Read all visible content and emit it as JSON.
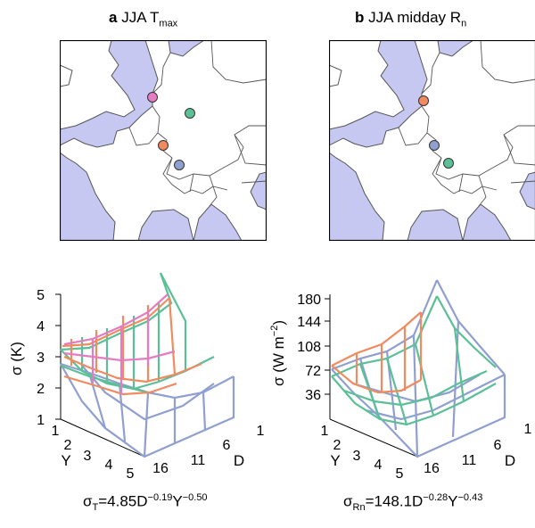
{
  "panels": [
    {
      "id": "a",
      "label": "a",
      "title": "JJA T",
      "title_sub": "max",
      "title_after": "",
      "dots": [
        {
          "name": "pink-site-marker",
          "color": "#e57cc2"
        },
        {
          "name": "green-site-marker",
          "color": "#5bbf97"
        },
        {
          "name": "orange-site-marker",
          "color": "#f08a60"
        },
        {
          "name": "blue-site-marker",
          "color": "#8f9fcf"
        }
      ],
      "zlabel": "σ (K)",
      "zticks": [
        "1",
        "2",
        "3",
        "4",
        "5"
      ],
      "yticks": [
        "1",
        "2",
        "3",
        "4",
        "5"
      ],
      "ylabel": "Y",
      "xticks": [
        "16",
        "11",
        "6",
        "1"
      ],
      "xlabel": "D",
      "formula": {
        "sigma": "σ",
        "sigma_sub": "T",
        "body": "=4.85D",
        "exp1": "−0.19",
        "mid": "Y",
        "exp2": "−0.50"
      }
    },
    {
      "id": "b",
      "label": "b",
      "title": "JJA midday R",
      "title_sub": "n",
      "title_after": "",
      "dots": [
        {
          "name": "orange-site-marker",
          "color": "#f08a60"
        },
        {
          "name": "blue-site-marker",
          "color": "#8f9fcf"
        },
        {
          "name": "green-site-marker",
          "color": "#5bbf97"
        }
      ],
      "zlabel": "σ (W m",
      "zlabel_sup": "−2",
      "zlabel_end": ")",
      "zticks": [
        "36",
        "72",
        "108",
        "144",
        "180"
      ],
      "yticks": [
        "1",
        "2",
        "3",
        "4",
        "5"
      ],
      "ylabel": "Y",
      "xticks": [
        "16",
        "11",
        "6",
        "1"
      ],
      "xlabel": "D",
      "formula": {
        "sigma": "σ",
        "sigma_sub": "Rn",
        "body": "=148.1D",
        "exp1": "−0.28",
        "mid": "Y",
        "exp2": "−0.43"
      }
    }
  ],
  "colors": {
    "sea": "#c6c8f2",
    "land": "#ffffff",
    "border": "#555555",
    "pink": "#e57cc2",
    "green": "#5bbf97",
    "orange": "#f08a60",
    "blue": "#8f9fcf"
  }
}
